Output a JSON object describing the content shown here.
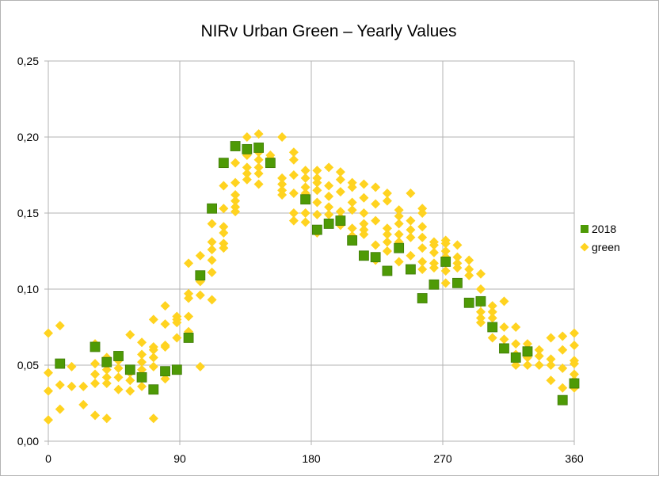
{
  "chart_data": {
    "type": "scatter",
    "title": "NIRv Urban Green – Yearly Values",
    "xlabel": "",
    "ylabel": "",
    "xlim": [
      0,
      360
    ],
    "ylim": [
      0,
      0.25
    ],
    "x_ticks": [
      0,
      90,
      180,
      270,
      360
    ],
    "x_tick_labels": [
      "0",
      "90",
      "180",
      "270",
      "360"
    ],
    "y_ticks": [
      0,
      0.05,
      0.1,
      0.15,
      0.2,
      0.25
    ],
    "y_tick_labels": [
      "0,00",
      "0,05",
      "0,10",
      "0,15",
      "0,20",
      "0,25"
    ],
    "grid": true,
    "legend_position": "right",
    "series": [
      {
        "name": "2018",
        "color": "#4e9a06",
        "marker": "square",
        "points": [
          [
            8,
            0.051
          ],
          [
            32,
            0.062
          ],
          [
            40,
            0.052
          ],
          [
            48,
            0.056
          ],
          [
            56,
            0.047
          ],
          [
            64,
            0.042
          ],
          [
            72,
            0.034
          ],
          [
            80,
            0.046
          ],
          [
            88,
            0.047
          ],
          [
            96,
            0.068
          ],
          [
            104,
            0.109
          ],
          [
            112,
            0.153
          ],
          [
            120,
            0.183
          ],
          [
            128,
            0.194
          ],
          [
            136,
            0.192
          ],
          [
            144,
            0.193
          ],
          [
            152,
            0.183
          ],
          [
            176,
            0.159
          ],
          [
            184,
            0.139
          ],
          [
            192,
            0.143
          ],
          [
            200,
            0.145
          ],
          [
            208,
            0.132
          ],
          [
            216,
            0.122
          ],
          [
            224,
            0.121
          ],
          [
            232,
            0.112
          ],
          [
            240,
            0.127
          ],
          [
            248,
            0.113
          ],
          [
            256,
            0.094
          ],
          [
            264,
            0.103
          ],
          [
            272,
            0.118
          ],
          [
            280,
            0.104
          ],
          [
            288,
            0.091
          ],
          [
            296,
            0.092
          ],
          [
            304,
            0.075
          ],
          [
            312,
            0.061
          ],
          [
            320,
            0.055
          ],
          [
            328,
            0.059
          ],
          [
            352,
            0.027
          ],
          [
            360,
            0.038
          ]
        ]
      },
      {
        "name": "green",
        "color": "#ffd320",
        "marker": "diamond",
        "points": [
          [
            0,
            0.071
          ],
          [
            0,
            0.045
          ],
          [
            0,
            0.033
          ],
          [
            0,
            0.014
          ],
          [
            8,
            0.076
          ],
          [
            8,
            0.037
          ],
          [
            8,
            0.021
          ],
          [
            16,
            0.049
          ],
          [
            16,
            0.036
          ],
          [
            24,
            0.036
          ],
          [
            24,
            0.024
          ],
          [
            32,
            0.064
          ],
          [
            32,
            0.051
          ],
          [
            32,
            0.044
          ],
          [
            32,
            0.038
          ],
          [
            32,
            0.017
          ],
          [
            40,
            0.055
          ],
          [
            40,
            0.047
          ],
          [
            40,
            0.042
          ],
          [
            40,
            0.038
          ],
          [
            40,
            0.015
          ],
          [
            48,
            0.053
          ],
          [
            48,
            0.048
          ],
          [
            48,
            0.042
          ],
          [
            48,
            0.034
          ],
          [
            56,
            0.07
          ],
          [
            56,
            0.045
          ],
          [
            56,
            0.04
          ],
          [
            56,
            0.033
          ],
          [
            64,
            0.065
          ],
          [
            64,
            0.057
          ],
          [
            64,
            0.052
          ],
          [
            64,
            0.047
          ],
          [
            64,
            0.036
          ],
          [
            72,
            0.08
          ],
          [
            72,
            0.062
          ],
          [
            72,
            0.06
          ],
          [
            72,
            0.055
          ],
          [
            72,
            0.049
          ],
          [
            72,
            0.015
          ],
          [
            80,
            0.089
          ],
          [
            80,
            0.077
          ],
          [
            80,
            0.063
          ],
          [
            80,
            0.062
          ],
          [
            80,
            0.045
          ],
          [
            80,
            0.041
          ],
          [
            88,
            0.082
          ],
          [
            88,
            0.08
          ],
          [
            88,
            0.078
          ],
          [
            88,
            0.068
          ],
          [
            96,
            0.117
          ],
          [
            96,
            0.097
          ],
          [
            96,
            0.094
          ],
          [
            96,
            0.082
          ],
          [
            96,
            0.072
          ],
          [
            104,
            0.122
          ],
          [
            104,
            0.105
          ],
          [
            104,
            0.096
          ],
          [
            104,
            0.049
          ],
          [
            112,
            0.143
          ],
          [
            112,
            0.131
          ],
          [
            112,
            0.126
          ],
          [
            112,
            0.119
          ],
          [
            112,
            0.111
          ],
          [
            112,
            0.093
          ],
          [
            120,
            0.168
          ],
          [
            120,
            0.153
          ],
          [
            120,
            0.141
          ],
          [
            120,
            0.137
          ],
          [
            120,
            0.13
          ],
          [
            120,
            0.127
          ],
          [
            128,
            0.183
          ],
          [
            128,
            0.17
          ],
          [
            128,
            0.162
          ],
          [
            128,
            0.158
          ],
          [
            128,
            0.154
          ],
          [
            128,
            0.151
          ],
          [
            136,
            0.2
          ],
          [
            136,
            0.188
          ],
          [
            136,
            0.18
          ],
          [
            136,
            0.176
          ],
          [
            136,
            0.172
          ],
          [
            144,
            0.202
          ],
          [
            144,
            0.19
          ],
          [
            144,
            0.185
          ],
          [
            144,
            0.18
          ],
          [
            144,
            0.176
          ],
          [
            144,
            0.169
          ],
          [
            152,
            0.188
          ],
          [
            152,
            0.186
          ],
          [
            160,
            0.2
          ],
          [
            160,
            0.173
          ],
          [
            160,
            0.169
          ],
          [
            160,
            0.165
          ],
          [
            160,
            0.162
          ],
          [
            168,
            0.19
          ],
          [
            168,
            0.185
          ],
          [
            168,
            0.175
          ],
          [
            168,
            0.163
          ],
          [
            168,
            0.15
          ],
          [
            168,
            0.145
          ],
          [
            176,
            0.178
          ],
          [
            176,
            0.173
          ],
          [
            176,
            0.167
          ],
          [
            176,
            0.163
          ],
          [
            176,
            0.15
          ],
          [
            176,
            0.144
          ],
          [
            184,
            0.178
          ],
          [
            184,
            0.173
          ],
          [
            184,
            0.17
          ],
          [
            184,
            0.165
          ],
          [
            184,
            0.157
          ],
          [
            184,
            0.149
          ],
          [
            184,
            0.137
          ],
          [
            192,
            0.18
          ],
          [
            192,
            0.168
          ],
          [
            192,
            0.161
          ],
          [
            192,
            0.154
          ],
          [
            192,
            0.149
          ],
          [
            200,
            0.177
          ],
          [
            200,
            0.172
          ],
          [
            200,
            0.164
          ],
          [
            200,
            0.151
          ],
          [
            200,
            0.147
          ],
          [
            200,
            0.142
          ],
          [
            208,
            0.17
          ],
          [
            208,
            0.167
          ],
          [
            208,
            0.157
          ],
          [
            208,
            0.152
          ],
          [
            208,
            0.14
          ],
          [
            208,
            0.135
          ],
          [
            216,
            0.169
          ],
          [
            216,
            0.16
          ],
          [
            216,
            0.15
          ],
          [
            216,
            0.143
          ],
          [
            216,
            0.139
          ],
          [
            216,
            0.136
          ],
          [
            216,
            0.122
          ],
          [
            224,
            0.167
          ],
          [
            224,
            0.156
          ],
          [
            224,
            0.145
          ],
          [
            224,
            0.129
          ],
          [
            224,
            0.119
          ],
          [
            232,
            0.163
          ],
          [
            232,
            0.158
          ],
          [
            232,
            0.14
          ],
          [
            232,
            0.136
          ],
          [
            232,
            0.131
          ],
          [
            232,
            0.125
          ],
          [
            240,
            0.152
          ],
          [
            240,
            0.148
          ],
          [
            240,
            0.143
          ],
          [
            240,
            0.136
          ],
          [
            240,
            0.131
          ],
          [
            240,
            0.118
          ],
          [
            248,
            0.163
          ],
          [
            248,
            0.145
          ],
          [
            248,
            0.139
          ],
          [
            248,
            0.134
          ],
          [
            248,
            0.122
          ],
          [
            256,
            0.153
          ],
          [
            256,
            0.15
          ],
          [
            256,
            0.141
          ],
          [
            256,
            0.134
          ],
          [
            256,
            0.127
          ],
          [
            256,
            0.118
          ],
          [
            256,
            0.113
          ],
          [
            264,
            0.131
          ],
          [
            264,
            0.129
          ],
          [
            264,
            0.124
          ],
          [
            264,
            0.117
          ],
          [
            264,
            0.114
          ],
          [
            272,
            0.132
          ],
          [
            272,
            0.13
          ],
          [
            272,
            0.125
          ],
          [
            272,
            0.121
          ],
          [
            272,
            0.112
          ],
          [
            272,
            0.104
          ],
          [
            280,
            0.129
          ],
          [
            280,
            0.121
          ],
          [
            280,
            0.117
          ],
          [
            280,
            0.114
          ],
          [
            288,
            0.119
          ],
          [
            288,
            0.113
          ],
          [
            288,
            0.109
          ],
          [
            296,
            0.11
          ],
          [
            296,
            0.1
          ],
          [
            296,
            0.091
          ],
          [
            296,
            0.085
          ],
          [
            296,
            0.081
          ],
          [
            296,
            0.078
          ],
          [
            304,
            0.089
          ],
          [
            304,
            0.085
          ],
          [
            304,
            0.081
          ],
          [
            304,
            0.075
          ],
          [
            304,
            0.068
          ],
          [
            312,
            0.092
          ],
          [
            312,
            0.075
          ],
          [
            312,
            0.067
          ],
          [
            312,
            0.062
          ],
          [
            320,
            0.075
          ],
          [
            320,
            0.064
          ],
          [
            320,
            0.057
          ],
          [
            320,
            0.053
          ],
          [
            320,
            0.05
          ],
          [
            328,
            0.064
          ],
          [
            328,
            0.059
          ],
          [
            328,
            0.055
          ],
          [
            328,
            0.05
          ],
          [
            336,
            0.06
          ],
          [
            336,
            0.056
          ],
          [
            336,
            0.05
          ],
          [
            344,
            0.068
          ],
          [
            344,
            0.054
          ],
          [
            344,
            0.05
          ],
          [
            344,
            0.04
          ],
          [
            352,
            0.069
          ],
          [
            352,
            0.06
          ],
          [
            352,
            0.048
          ],
          [
            352,
            0.035
          ],
          [
            360,
            0.071
          ],
          [
            360,
            0.063
          ],
          [
            360,
            0.053
          ],
          [
            360,
            0.051
          ],
          [
            360,
            0.044
          ],
          [
            360,
            0.04
          ],
          [
            360,
            0.035
          ]
        ]
      }
    ]
  }
}
